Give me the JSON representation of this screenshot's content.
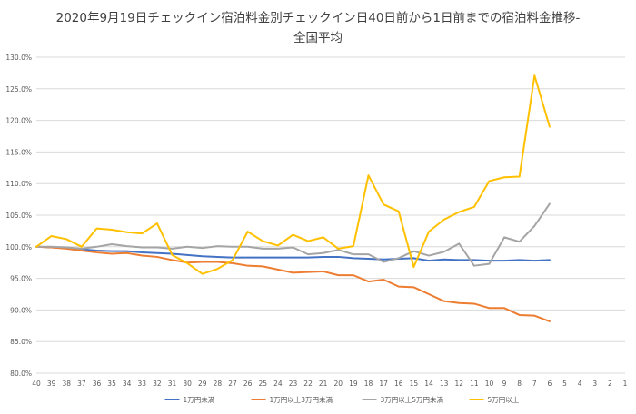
{
  "chart_data": {
    "type": "line",
    "title_lines": [
      "2020年9月19日チェックイン宿泊料金別チェックイン日40日前から1日前までの宿泊料金推移-",
      "全国平均"
    ],
    "x": [
      "40",
      "39",
      "38",
      "37",
      "36",
      "35",
      "34",
      "33",
      "32",
      "31",
      "30",
      "29",
      "28",
      "27",
      "26",
      "25",
      "24",
      "23",
      "22",
      "21",
      "20",
      "19",
      "18",
      "17",
      "16",
      "15",
      "14",
      "13",
      "12",
      "11",
      "10",
      "9",
      "8",
      "7",
      "6",
      "5",
      "4",
      "3",
      "2",
      "1"
    ],
    "ylim": [
      0.8,
      1.3
    ],
    "yticks": [
      0.8,
      0.85,
      0.9,
      0.95,
      1.0,
      1.05,
      1.1,
      1.15,
      1.2,
      1.25,
      1.3
    ],
    "ytick_labels": [
      "80.0%",
      "85.0%",
      "90.0%",
      "95.0%",
      "100.0%",
      "105.0%",
      "110.0%",
      "115.0%",
      "120.0%",
      "125.0%",
      "130.0%"
    ],
    "grid": true,
    "legend_position": "bottom",
    "series": [
      {
        "name": "1万円未満",
        "color": "#4472C4",
        "values": [
          1.0,
          0.999,
          0.998,
          0.996,
          0.994,
          0.993,
          0.993,
          0.991,
          0.99,
          0.989,
          0.987,
          0.985,
          0.984,
          0.983,
          0.983,
          0.983,
          0.983,
          0.983,
          0.983,
          0.984,
          0.984,
          0.982,
          0.981,
          0.98,
          0.981,
          0.982,
          0.978,
          0.98,
          0.979,
          0.979,
          0.978,
          0.978,
          0.979,
          0.978,
          0.979,
          null,
          null,
          null,
          null,
          null
        ]
      },
      {
        "name": "1万円以上3万円未満",
        "color": "#ED7D31",
        "values": [
          1.0,
          0.999,
          0.997,
          0.994,
          0.991,
          0.989,
          0.99,
          0.986,
          0.984,
          0.979,
          0.975,
          0.976,
          0.976,
          0.974,
          0.97,
          0.969,
          0.964,
          0.959,
          0.96,
          0.961,
          0.955,
          0.955,
          0.945,
          0.948,
          0.937,
          0.936,
          0.925,
          0.914,
          0.911,
          0.91,
          0.903,
          0.903,
          0.892,
          0.891,
          0.882,
          null,
          null,
          null,
          null,
          null
        ]
      },
      {
        "name": "3万円以上5万円未満",
        "color": "#A5A5A5",
        "values": [
          1.0,
          1.0,
          0.999,
          0.997,
          1.0,
          1.004,
          1.001,
          0.999,
          0.999,
          0.997,
          1.0,
          0.998,
          1.001,
          1.0,
          1.0,
          0.997,
          0.997,
          0.999,
          0.988,
          0.99,
          0.995,
          0.988,
          0.988,
          0.976,
          0.982,
          0.993,
          0.986,
          0.992,
          1.005,
          0.97,
          0.973,
          1.015,
          1.008,
          1.033,
          1.068,
          null,
          null,
          null,
          null,
          null
        ]
      },
      {
        "name": "5万円以上",
        "color": "#FFC000",
        "values": [
          1.0,
          1.017,
          1.012,
          1.0,
          1.029,
          1.027,
          1.023,
          1.021,
          1.037,
          0.987,
          0.974,
          0.957,
          0.965,
          0.979,
          1.024,
          1.009,
          1.002,
          1.019,
          1.009,
          1.015,
          0.997,
          1.001,
          1.113,
          1.067,
          1.056,
          0.968,
          1.024,
          1.043,
          1.055,
          1.063,
          1.104,
          1.11,
          1.111,
          1.271,
          1.19,
          null,
          null,
          null,
          null,
          null
        ]
      }
    ]
  }
}
